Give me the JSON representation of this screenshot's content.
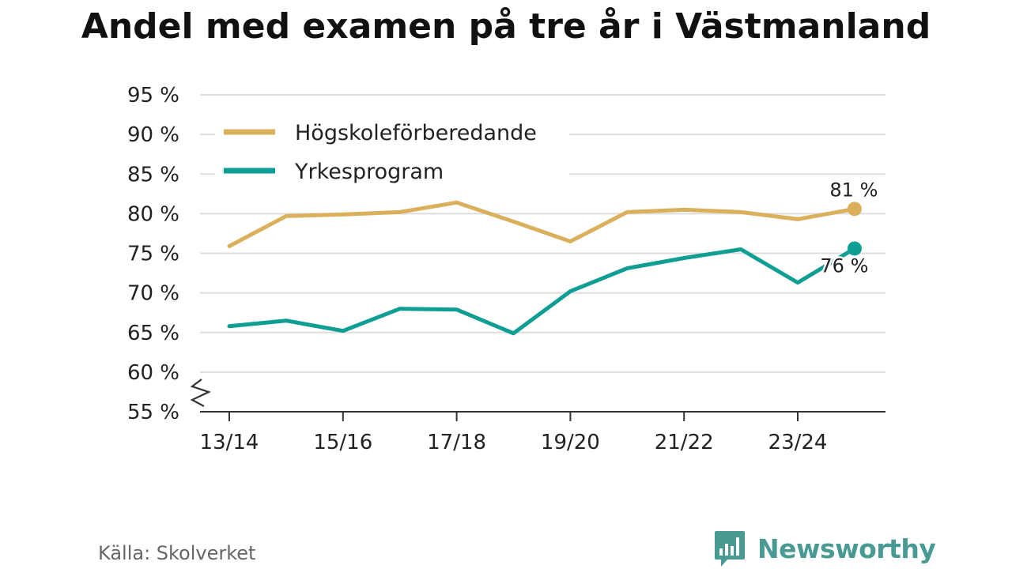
{
  "title": "Andel med examen på tre år i Västmanland",
  "source": "Källa: Skolverket",
  "brand": "Newsworthy",
  "colors": {
    "hogskole": "#dbb05c",
    "yrkes": "#0f9e94",
    "grid": "#dddddd",
    "axis": "#333333",
    "brand": "#4a9a94"
  },
  "chart_data": {
    "type": "line",
    "title": "Andel med examen på tre år i Västmanland",
    "xlabel": "",
    "ylabel": "",
    "x": [
      "13/14",
      "14/15",
      "15/16",
      "16/17",
      "17/18",
      "18/19",
      "19/20",
      "20/21",
      "21/22",
      "22/23",
      "23/24",
      "24/25"
    ],
    "x_tick_labels": [
      "13/14",
      "15/16",
      "17/18",
      "19/20",
      "21/22",
      "23/24"
    ],
    "y_tick_labels": [
      "55 %",
      "60 %",
      "65 %",
      "70 %",
      "75 %",
      "80 %",
      "85 %",
      "90 %",
      "95 %"
    ],
    "ylim": [
      55,
      95
    ],
    "y_axis_break": true,
    "grid": true,
    "legend_position": "top-left",
    "series": [
      {
        "name": "Högskoleförberedande",
        "values": [
          75.9,
          79.7,
          79.9,
          80.2,
          81.4,
          79.0,
          76.5,
          80.2,
          80.5,
          80.2,
          79.3,
          80.6
        ],
        "end_label": "81 %"
      },
      {
        "name": "Yrkesprogram",
        "values": [
          65.8,
          66.5,
          65.2,
          68.0,
          67.9,
          64.9,
          70.2,
          73.1,
          74.4,
          75.5,
          71.3,
          75.6
        ],
        "end_label": "76 %"
      }
    ]
  }
}
